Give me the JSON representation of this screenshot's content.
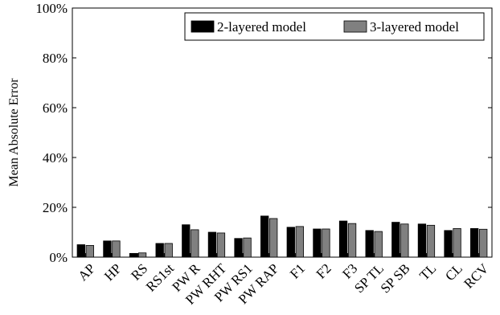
{
  "chart_data": {
    "type": "bar",
    "ylabel": "Mean Absolute Error",
    "xlabel": "",
    "ylim": [
      0,
      100
    ],
    "yticks": [
      0,
      20,
      40,
      60,
      80,
      100
    ],
    "ytick_labels": [
      "0%",
      "20%",
      "40%",
      "60%",
      "80%",
      "100%"
    ],
    "grid": false,
    "legend_position": "top-right",
    "categories": [
      "AP",
      "HP",
      "RS",
      "RS1st",
      "PW R",
      "PW RHT",
      "PW RS1",
      "PW RAP",
      "F1",
      "F2",
      "F3",
      "SP TL",
      "SP SB",
      "TL",
      "CL",
      "RCV"
    ],
    "series": [
      {
        "name": "2-layered model",
        "color": "#000000",
        "values": [
          5.0,
          6.5,
          1.5,
          5.5,
          13.0,
          10.0,
          7.5,
          16.5,
          12.0,
          11.3,
          14.5,
          10.7,
          14.0,
          13.3,
          10.7,
          11.5
        ]
      },
      {
        "name": "3-layered model",
        "color": "#808080",
        "values": [
          4.7,
          6.5,
          1.7,
          5.5,
          11.0,
          9.7,
          7.7,
          15.5,
          12.3,
          11.3,
          13.5,
          10.3,
          13.3,
          12.8,
          11.5,
          11.2
        ]
      }
    ]
  }
}
